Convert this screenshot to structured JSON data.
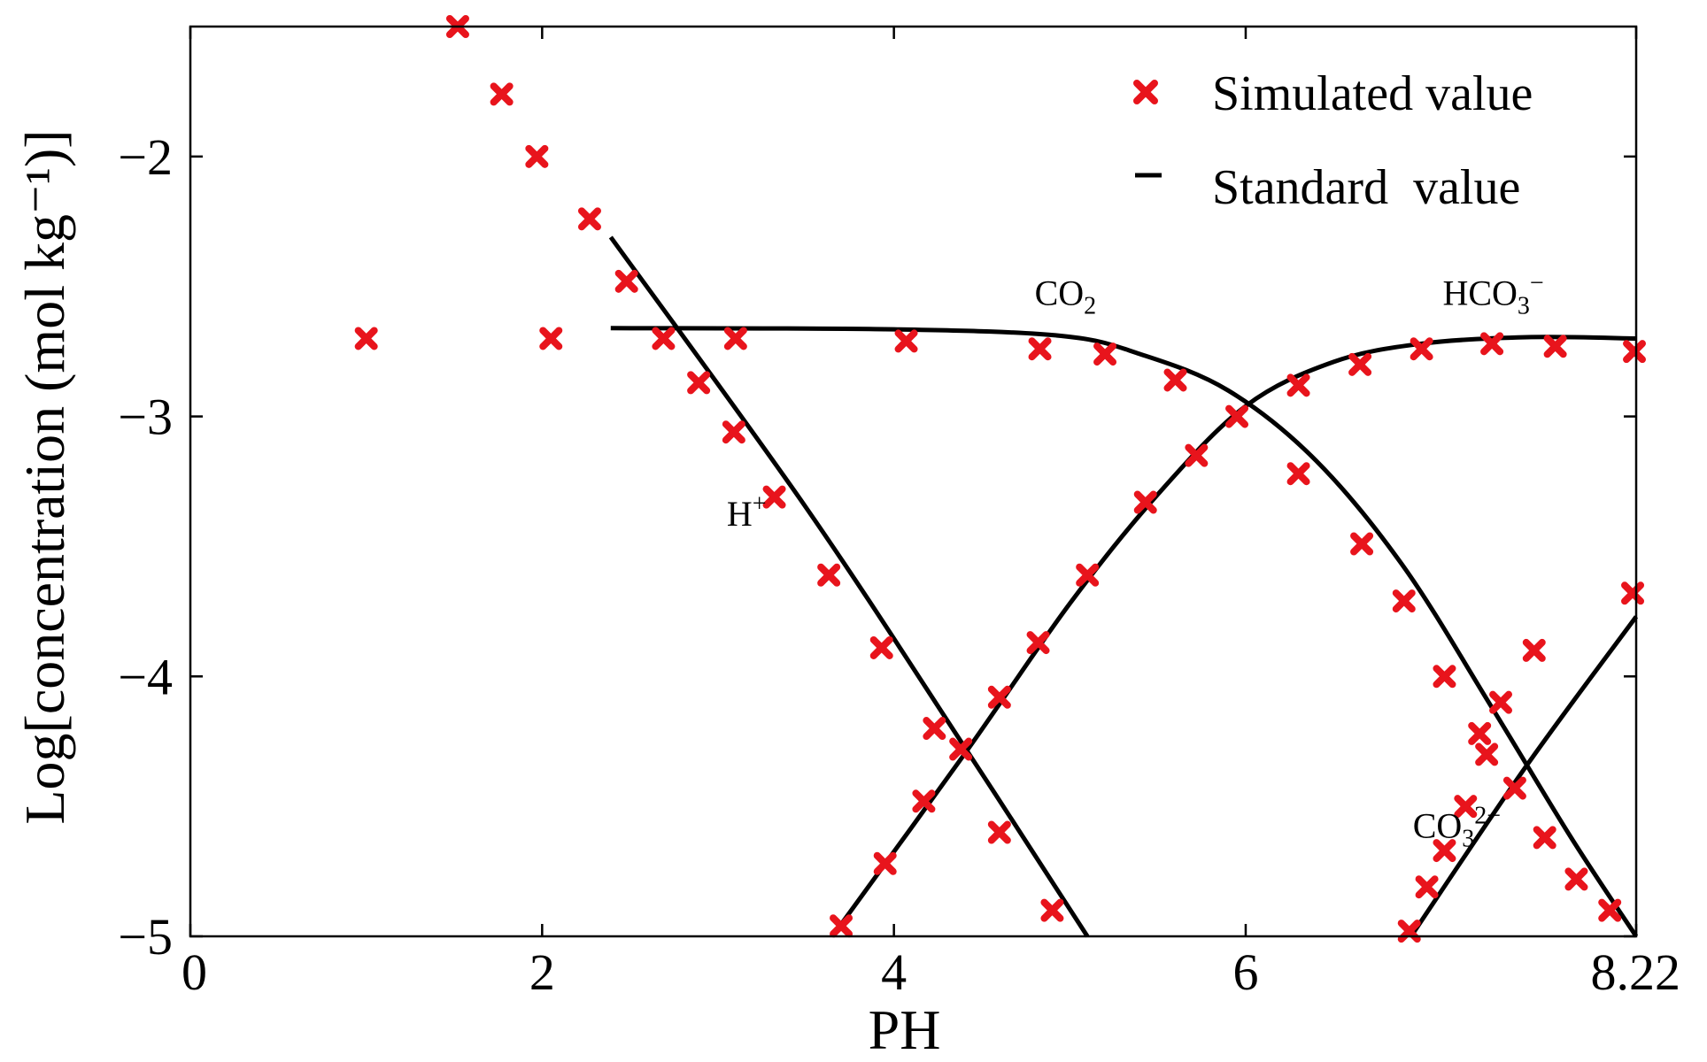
{
  "chart_data": {
    "type": "scatter",
    "title": "",
    "xlabel": "PH",
    "ylabel": "Log[concentration (mol kg⁻¹)]",
    "xlim": [
      0,
      8.22
    ],
    "ylim": [
      -5,
      -1.5
    ],
    "x_ticks": [
      {
        "value": 0,
        "label": "0"
      },
      {
        "value": 2,
        "label": "2"
      },
      {
        "value": 4,
        "label": "4"
      },
      {
        "value": 6,
        "label": "6"
      },
      {
        "value": 8.22,
        "label": "8.22"
      }
    ],
    "y_ticks": [
      {
        "value": -2,
        "label": "−2"
      },
      {
        "value": -3,
        "label": "−3"
      },
      {
        "value": -4,
        "label": "−4"
      },
      {
        "value": -5,
        "label": "−5"
      }
    ],
    "grid": false,
    "legend": {
      "position": "top-right",
      "entries": [
        {
          "label": "Simulated value",
          "marker": "x",
          "color": "#e8141c"
        },
        {
          "label": "Standard  value",
          "marker": "line",
          "color": "#000000"
        }
      ]
    },
    "annotations": [
      {
        "base": "CO",
        "sub": "2",
        "sup": "",
        "x": 4.8,
        "y": -2.57
      },
      {
        "base": "HCO",
        "sub": "3",
        "sup": "−",
        "x": 7.12,
        "y": -2.57
      },
      {
        "base": "H",
        "sub": "",
        "sup": "+",
        "x": 3.05,
        "y": -3.42
      },
      {
        "base": "CO",
        "sub": "3",
        "sup": "2−",
        "x": 6.95,
        "y": -4.62
      }
    ],
    "series": [
      {
        "name": "Simulated value",
        "type": "scatter",
        "color": "#e8141c",
        "points": [
          [
            1.0,
            -2.7
          ],
          [
            1.52,
            -1.5
          ],
          [
            1.77,
            -1.76
          ],
          [
            1.97,
            -2.0
          ],
          [
            2.05,
            -2.7
          ],
          [
            2.27,
            -2.24
          ],
          [
            2.48,
            -2.48
          ],
          [
            2.69,
            -2.7
          ],
          [
            3.1,
            -2.7
          ],
          [
            4.07,
            -2.71
          ],
          [
            4.83,
            -2.74
          ],
          [
            5.2,
            -2.76
          ],
          [
            5.6,
            -2.86
          ],
          [
            5.95,
            -3.0
          ],
          [
            6.3,
            -3.22
          ],
          [
            6.66,
            -3.49
          ],
          [
            6.9,
            -3.71
          ],
          [
            7.13,
            -4.0
          ],
          [
            7.33,
            -4.22
          ],
          [
            7.37,
            -4.3
          ],
          [
            7.53,
            -4.43
          ],
          [
            7.7,
            -4.62
          ],
          [
            7.88,
            -4.78
          ],
          [
            8.07,
            -4.9
          ],
          [
            2.89,
            -2.87
          ],
          [
            3.09,
            -3.06
          ],
          [
            3.32,
            -3.31
          ],
          [
            3.63,
            -3.61
          ],
          [
            3.93,
            -3.89
          ],
          [
            4.23,
            -4.2
          ],
          [
            4.38,
            -4.28
          ],
          [
            4.6,
            -4.6
          ],
          [
            4.9,
            -4.9
          ],
          [
            3.7,
            -4.96
          ],
          [
            3.95,
            -4.72
          ],
          [
            4.17,
            -4.48
          ],
          [
            4.6,
            -4.08
          ],
          [
            4.82,
            -3.87
          ],
          [
            5.1,
            -3.61
          ],
          [
            5.43,
            -3.33
          ],
          [
            5.72,
            -3.15
          ],
          [
            6.3,
            -2.88
          ],
          [
            6.65,
            -2.8
          ],
          [
            7.0,
            -2.74
          ],
          [
            7.4,
            -2.72
          ],
          [
            7.76,
            -2.73
          ],
          [
            8.21,
            -2.75
          ],
          [
            6.93,
            -4.98
          ],
          [
            7.03,
            -4.81
          ],
          [
            7.13,
            -4.67
          ],
          [
            7.25,
            -4.5
          ],
          [
            7.45,
            -4.1
          ],
          [
            7.64,
            -3.9
          ],
          [
            8.2,
            -3.68
          ]
        ]
      },
      {
        "name": "Standard  value",
        "type": "line",
        "color": "#000000",
        "lines": [
          [
            [
              2.39,
              -2.31
            ],
            [
              3.5,
              -3.35
            ],
            [
              4.4,
              -4.27
            ],
            [
              5.1,
              -5.0
            ]
          ],
          [
            [
              2.39,
              -2.66
            ],
            [
              4.0,
              -2.665
            ],
            [
              4.95,
              -2.69
            ],
            [
              5.4,
              -2.76
            ],
            [
              5.9,
              -2.9
            ],
            [
              6.4,
              -3.17
            ],
            [
              6.9,
              -3.58
            ],
            [
              7.4,
              -4.12
            ],
            [
              7.85,
              -4.62
            ],
            [
              8.22,
              -5.0
            ]
          ],
          [
            [
              3.65,
              -5.0
            ],
            [
              4.4,
              -4.3
            ],
            [
              5.0,
              -3.72
            ],
            [
              5.5,
              -3.3
            ],
            [
              6.0,
              -2.96
            ],
            [
              6.5,
              -2.79
            ],
            [
              7.0,
              -2.72
            ],
            [
              7.6,
              -2.695
            ],
            [
              8.22,
              -2.7
            ]
          ],
          [
            [
              6.94,
              -5.0
            ],
            [
              7.59,
              -4.35
            ],
            [
              8.22,
              -3.77
            ]
          ]
        ]
      }
    ]
  }
}
